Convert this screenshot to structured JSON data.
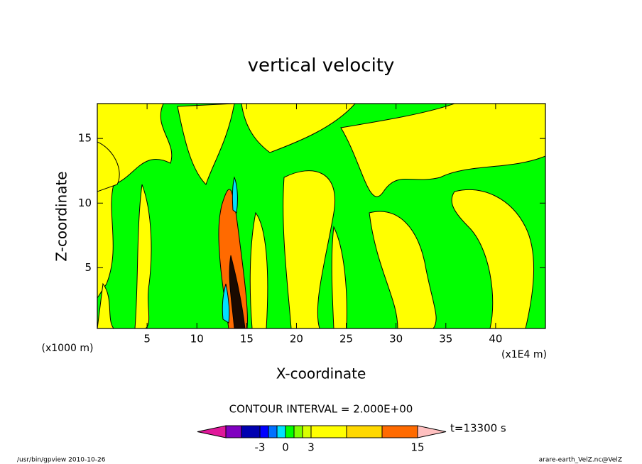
{
  "chart_data": {
    "type": "contour",
    "title": "vertical velocity",
    "x_label": "X-coordinate",
    "y_label": "Z-coordinate",
    "x_unit_left": "(x1000 m)",
    "x_unit_right": "(x1E4 m)",
    "xlim": [
      0,
      45
    ],
    "xticks": [
      5,
      10,
      15,
      20,
      25,
      30,
      35,
      40
    ],
    "ylim": [
      0.3,
      17.7
    ],
    "yticks": [
      5,
      10,
      15
    ],
    "contour_interval": "CONTOUR INTERVAL = 2.000E+00",
    "time_label": "t=13300 s",
    "colorbar_ticks": [
      -3,
      0,
      3,
      15
    ],
    "colorbar_colors": [
      "#e0189a",
      "#8000c0",
      "#0000b0",
      "#0000ff",
      "#0070ff",
      "#00e0ff",
      "#00ff00",
      "#80ff00",
      "#d8ff00",
      "#ffff00",
      "#ffd800",
      "#ff6a00",
      "#ff1818",
      "#ff7070",
      "#ffc0c0"
    ],
    "footer_left": "/usr/bin/gpview  2010-10-26",
    "footer_right": "arare-earth_VelZ.nc@VelZ"
  }
}
